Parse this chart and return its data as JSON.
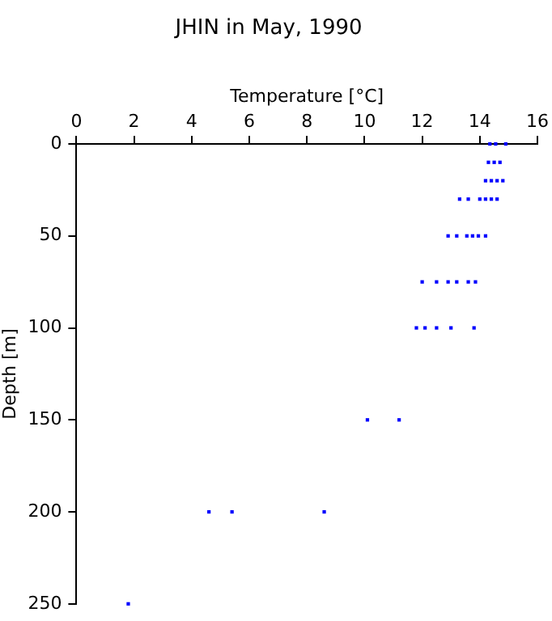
{
  "chart_data": {
    "type": "scatter",
    "title": "JHIN in May, 1990",
    "xlabel": "Temperature [°C]",
    "ylabel": "Depth [m]",
    "x": [
      14.35,
      14.55,
      14.9,
      14.3,
      14.5,
      14.7,
      14.2,
      14.4,
      14.6,
      14.8,
      13.3,
      13.6,
      14.0,
      14.2,
      14.4,
      14.6,
      12.9,
      13.2,
      13.55,
      13.75,
      13.95,
      14.2,
      12.0,
      12.5,
      12.9,
      13.2,
      13.6,
      13.85,
      11.8,
      12.1,
      12.5,
      13.0,
      13.8,
      10.1,
      11.2,
      4.6,
      5.4,
      8.6,
      1.8
    ],
    "values": [
      0,
      0,
      0,
      10,
      10,
      10,
      20,
      20,
      20,
      20,
      30,
      30,
      30,
      30,
      30,
      30,
      50,
      50,
      50,
      50,
      50,
      50,
      75,
      75,
      75,
      75,
      75,
      75,
      100,
      100,
      100,
      100,
      100,
      150,
      150,
      200,
      200,
      200,
      250
    ],
    "color": "#0000ff",
    "marker": "square",
    "xlim": [
      0,
      16
    ],
    "xticks": [
      0,
      2,
      4,
      6,
      8,
      10,
      12,
      14,
      16
    ],
    "ylim": [
      250,
      0
    ],
    "yticks": [
      0,
      50,
      100,
      150,
      200,
      250
    ],
    "grid": false,
    "legend": false
  }
}
